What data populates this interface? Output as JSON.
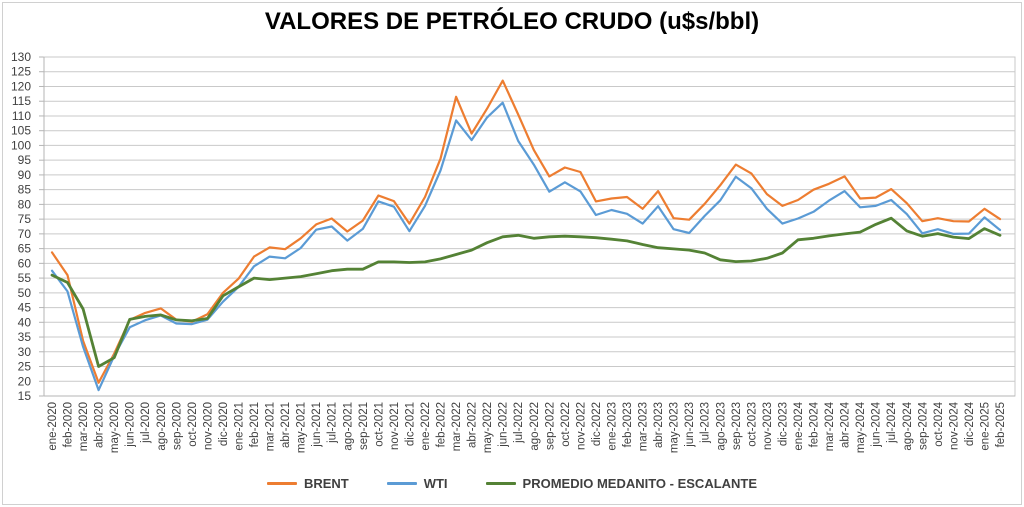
{
  "title": "VALORES DE PETRÓLEO CRUDO (u$s/bbl)",
  "chart_data": {
    "type": "line",
    "title": "VALORES DE PETRÓLEO CRUDO (u$s/bbl)",
    "xlabel": "",
    "ylabel": "",
    "ylim": [
      15,
      130
    ],
    "y_tick_step": 5,
    "y_ticks": [
      15,
      20,
      25,
      30,
      35,
      40,
      45,
      50,
      55,
      60,
      65,
      70,
      75,
      80,
      85,
      90,
      95,
      100,
      105,
      110,
      115,
      120,
      125,
      130
    ],
    "grid": true,
    "legend_position": "bottom",
    "x": [
      "ene-2020",
      "feb-2020",
      "mar-2020",
      "abr-2020",
      "may-2020",
      "jun-2020",
      "jul-2020",
      "ago-2020",
      "sep-2020",
      "oct-2020",
      "nov-2020",
      "dic-2020",
      "ene-2021",
      "feb-2021",
      "mar-2021",
      "abr-2021",
      "may-2021",
      "jun-2021",
      "jul-2021",
      "ago-2021",
      "sep-2021",
      "oct-2021",
      "nov-2021",
      "dic-2021",
      "ene-2022",
      "feb-2022",
      "mar-2022",
      "abr-2022",
      "may-2022",
      "jun-2022",
      "jul-2022",
      "ago-2022",
      "sep-2022",
      "oct-2022",
      "nov-2022",
      "dic-2022",
      "ene-2023",
      "feb-2023",
      "mar-2023",
      "abr-2023",
      "may-2023",
      "jun-2023",
      "jul-2023",
      "ago-2023",
      "sep-2023",
      "oct-2023",
      "nov-2023",
      "dic-2023",
      "ene-2024",
      "feb-2024",
      "mar-2024",
      "abr-2024",
      "may-2024",
      "jun-2024",
      "jul-2024",
      "ago-2024",
      "sep-2024",
      "oct-2024",
      "nov-2024",
      "dic-2024",
      "ene-2025",
      "feb-2025"
    ],
    "series": [
      {
        "name": "BRENT",
        "color": "#ED7D31",
        "width": 2.2,
        "values": [
          63.7,
          56.0,
          33.7,
          19.5,
          29.4,
          40.8,
          43.2,
          44.7,
          40.9,
          40.2,
          42.7,
          50.0,
          54.8,
          62.3,
          65.4,
          64.8,
          68.5,
          73.2,
          75.2,
          70.8,
          74.5,
          83.0,
          81.1,
          73.5,
          82.5,
          95.5,
          116.5,
          104.0,
          112.5,
          122.0,
          110.5,
          98.5,
          89.5,
          92.5,
          91.0,
          81.0,
          82.0,
          82.5,
          78.5,
          84.5,
          75.3,
          74.8,
          80.2,
          86.5,
          93.5,
          90.5,
          83.5,
          79.5,
          81.5,
          85.0,
          87.0,
          89.5,
          82.0,
          82.3,
          85.2,
          80.4,
          74.3,
          75.3,
          74.3,
          74.2,
          78.5,
          75.0
        ]
      },
      {
        "name": "WTI",
        "color": "#5B9BD5",
        "width": 2.2,
        "values": [
          57.5,
          50.5,
          31.7,
          17.0,
          28.6,
          38.3,
          40.7,
          42.3,
          39.6,
          39.4,
          40.9,
          47.0,
          52.0,
          59.0,
          62.3,
          61.7,
          65.2,
          71.4,
          72.5,
          67.7,
          71.7,
          81.0,
          79.2,
          70.9,
          79.5,
          91.5,
          108.5,
          101.8,
          109.5,
          114.5,
          101.5,
          93.5,
          84.3,
          87.5,
          84.4,
          76.4,
          78.1,
          76.8,
          73.5,
          79.4,
          71.6,
          70.3,
          76.1,
          81.4,
          89.4,
          85.5,
          78.5,
          73.5,
          75.2,
          77.5,
          81.3,
          84.5,
          79.0,
          79.5,
          81.5,
          76.7,
          70.2,
          71.6,
          70.0,
          70.1,
          75.6,
          71.3
        ]
      },
      {
        "name": "PROMEDIO MEDANITO - ESCALANTE",
        "color": "#548235",
        "width": 2.8,
        "values": [
          56.0,
          53.5,
          44.5,
          25.0,
          28.0,
          41.0,
          42.0,
          42.5,
          40.8,
          40.5,
          41.3,
          49.0,
          52.0,
          55.0,
          54.5,
          55.0,
          55.5,
          56.5,
          57.5,
          58.0,
          58.0,
          60.5,
          60.5,
          60.3,
          60.5,
          61.5,
          63.0,
          64.5,
          67.0,
          69.0,
          69.5,
          68.5,
          69.0,
          69.2,
          69.0,
          68.7,
          68.2,
          67.6,
          66.4,
          65.3,
          64.9,
          64.5,
          63.5,
          61.2,
          60.6,
          60.8,
          61.7,
          63.5,
          68.0,
          68.5,
          69.3,
          70.0,
          70.6,
          73.2,
          75.3,
          71.0,
          69.2,
          70.1,
          68.9,
          68.4,
          71.8,
          69.5
        ]
      }
    ]
  },
  "style": {
    "grid_color": "#c9c9c9",
    "axis_color": "#b5b5b5",
    "tick_label_color": "#404040"
  }
}
